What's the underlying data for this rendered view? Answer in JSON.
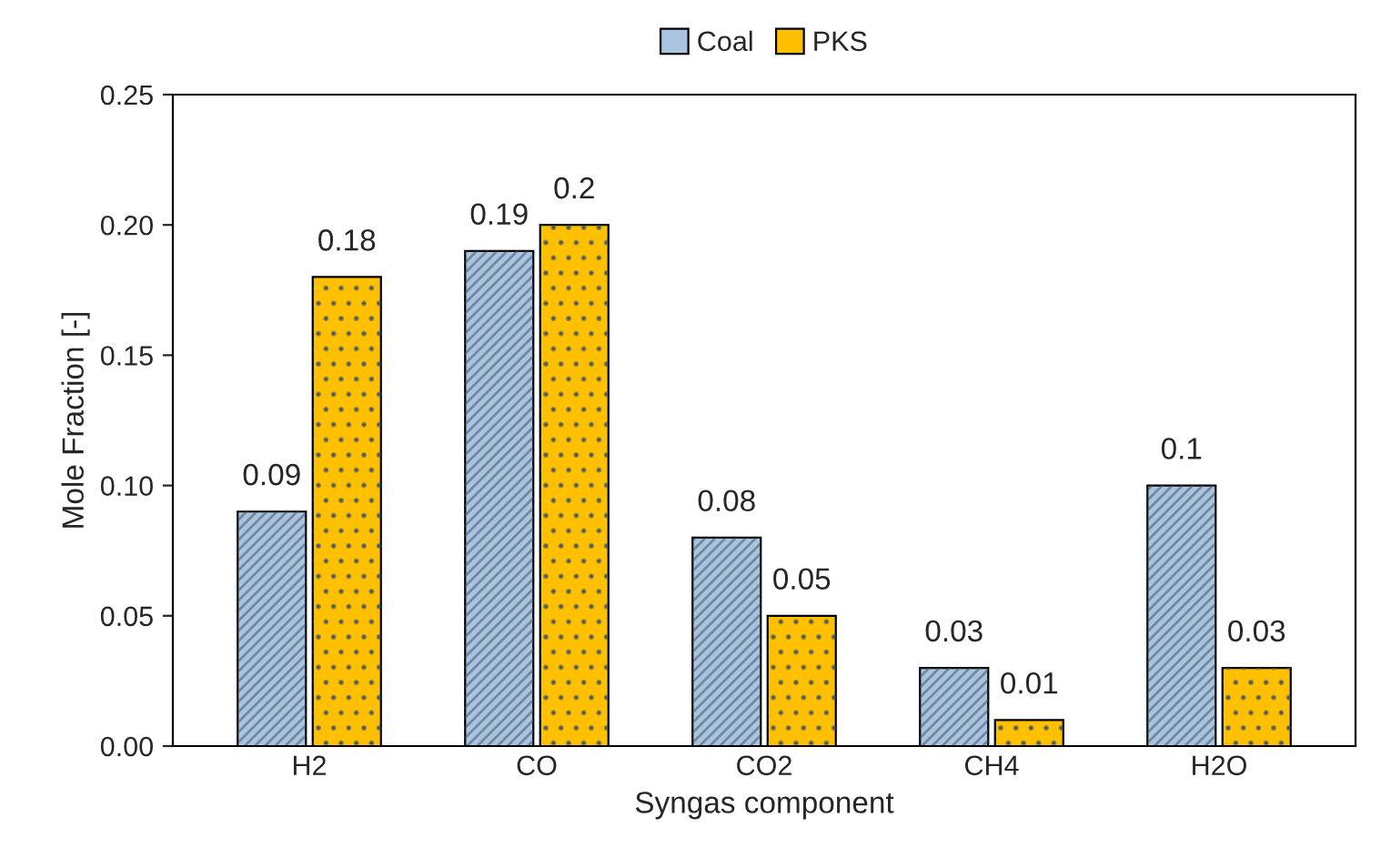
{
  "chart_data": {
    "type": "bar",
    "xlabel": "Syngas component",
    "ylabel": "Mole Fraction [-]",
    "categories": [
      "H2",
      "CO",
      "CO2",
      "CH4",
      "H2O"
    ],
    "series": [
      {
        "name": "Coal",
        "color": "#a9c4e0",
        "values": [
          0.09,
          0.19,
          0.08,
          0.03,
          0.1
        ]
      },
      {
        "name": "PKS",
        "color": "#ffc000",
        "values": [
          0.18,
          0.2,
          0.05,
          0.01,
          0.03
        ]
      }
    ],
    "ylim": [
      0,
      0.25
    ],
    "yticks": [
      {
        "value": 0,
        "label": "0.00"
      },
      {
        "value": 0.05,
        "label": "0.05"
      },
      {
        "value": 0.1,
        "label": "0.10"
      },
      {
        "value": 0.15,
        "label": "0.15"
      },
      {
        "value": 0.2,
        "label": "0.20"
      },
      {
        "value": 0.25,
        "label": "0.25"
      }
    ],
    "data_labels": true,
    "legend": "top",
    "grid": false
  }
}
